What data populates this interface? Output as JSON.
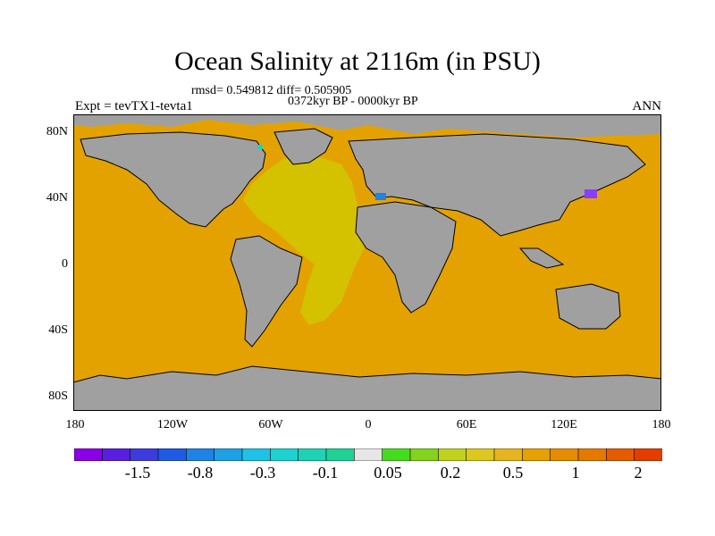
{
  "title": "Ocean Salinity at 2116m (in PSU)",
  "stats": "rmsd= 0.549812 diff= 0.505905",
  "period": "0372kyr BP - 0000kyr BP",
  "experiment": "Expt = tevTX1-tevta1",
  "season": "ANN",
  "colors": {
    "land": "#a0a0a0",
    "ocean_main": "#e4a200",
    "atlantic": "#d4c200",
    "coast": "#000000"
  },
  "map": {
    "y_ticks": [
      "80N",
      "40N",
      "0",
      "40S",
      "80S"
    ],
    "x_ticks": [
      "180",
      "120W",
      "60W",
      "0",
      "60E",
      "120E",
      "180"
    ]
  },
  "colorbar": {
    "colors": [
      "#8a00e6",
      "#5a1ee0",
      "#3c3cde",
      "#1e5ae6",
      "#1e82e6",
      "#1ea0e6",
      "#1ec2e6",
      "#1ed2d2",
      "#1ed2b4",
      "#1ed296",
      "#e6e6e6",
      "#46dc1e",
      "#82d21e",
      "#bed21e",
      "#dcc81e",
      "#e6b41e",
      "#e6a000",
      "#e68c00",
      "#e67800",
      "#e65a00",
      "#e63c00"
    ],
    "labels": [
      "-1.5",
      "-0.8",
      "-0.3",
      "-0.1",
      "0.05",
      "0.2",
      "0.5",
      "1",
      "2"
    ]
  }
}
